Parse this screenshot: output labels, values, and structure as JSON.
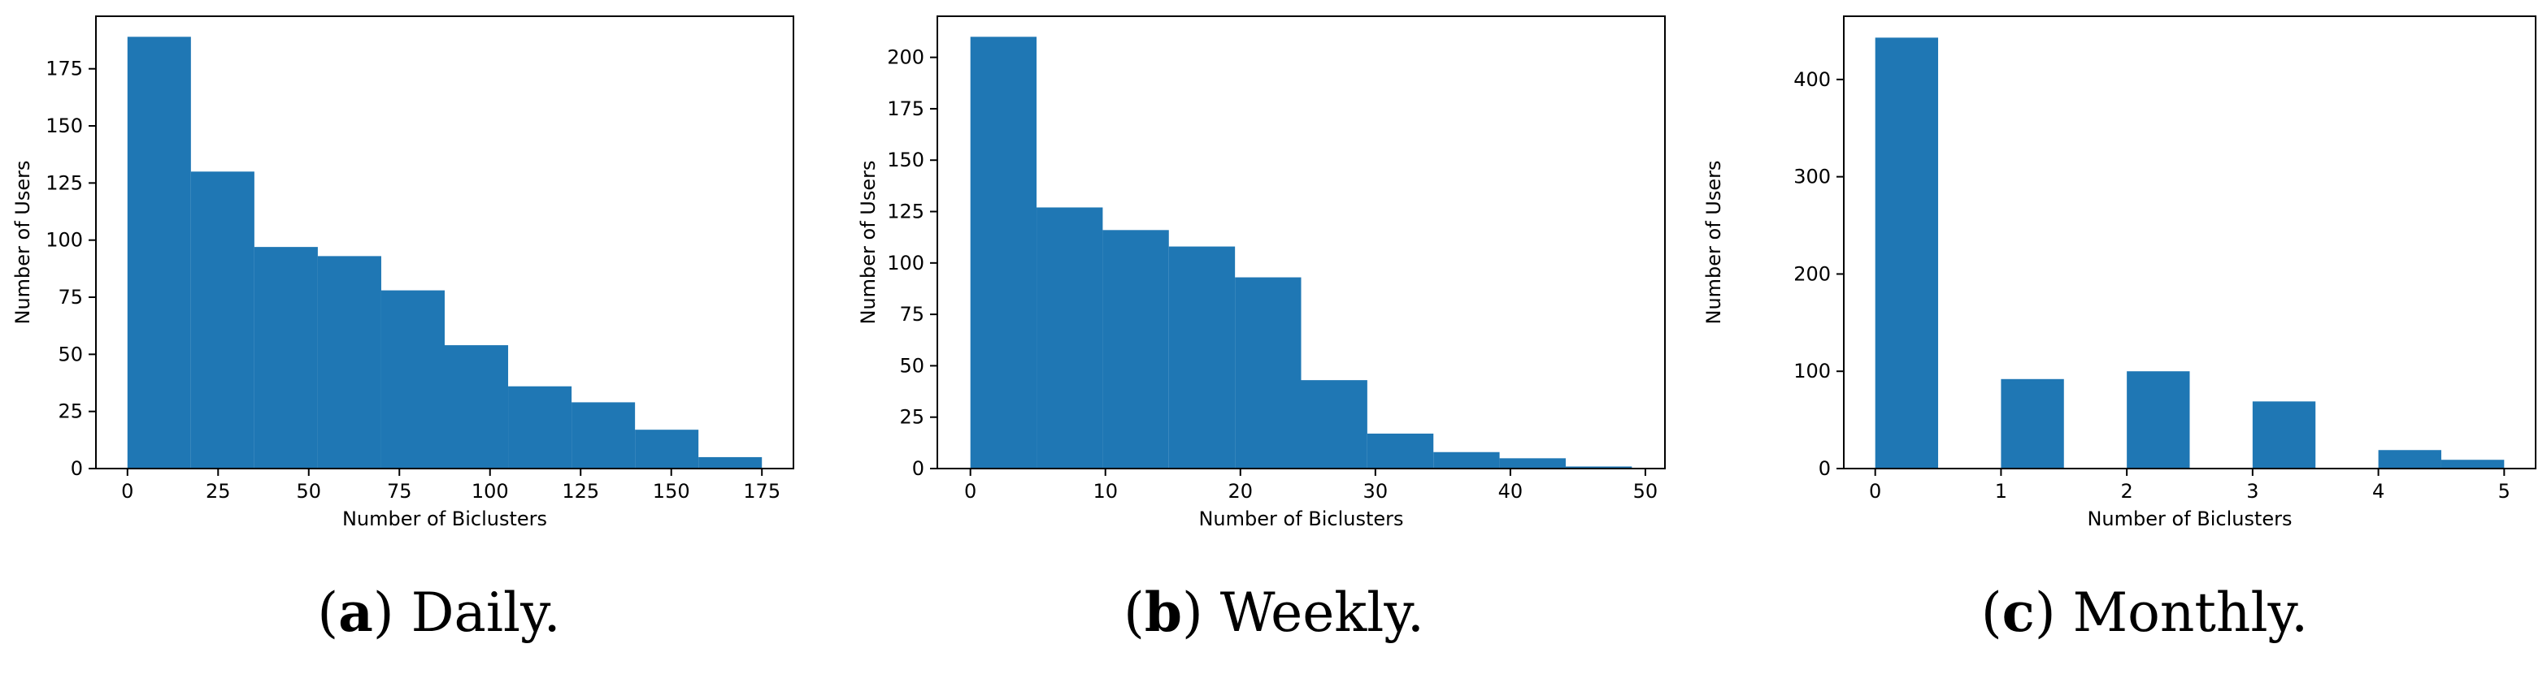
{
  "chart_data": [
    {
      "type": "bar",
      "histogram": true,
      "xlabel": "Number of Biclusters",
      "ylabel": "Number of Users",
      "xlim": [
        -8.7,
        183.7
      ],
      "ylim": [
        0,
        198
      ],
      "xticks": [
        0,
        25,
        50,
        75,
        100,
        125,
        150,
        175
      ],
      "yticks": [
        0,
        25,
        50,
        75,
        100,
        125,
        150,
        175
      ],
      "bins": [
        [
          0,
          17.5
        ],
        [
          17.5,
          35
        ],
        [
          35,
          52.5
        ],
        [
          52.5,
          70
        ],
        [
          70,
          87.5
        ],
        [
          87.5,
          105
        ],
        [
          105,
          122.5
        ],
        [
          122.5,
          140
        ],
        [
          140,
          157.5
        ],
        [
          157.5,
          175
        ]
      ],
      "values": [
        189,
        130,
        97,
        93,
        78,
        54,
        36,
        29,
        17,
        5
      ],
      "color": "#1f77b4",
      "caption": {
        "letter": "a",
        "text": " Daily."
      }
    },
    {
      "type": "bar",
      "histogram": true,
      "xlabel": "Number of Biclusters",
      "ylabel": "Number of Users",
      "xlim": [
        -2.45,
        51.45
      ],
      "ylim": [
        0,
        220
      ],
      "xticks": [
        0,
        10,
        20,
        30,
        40,
        50
      ],
      "yticks": [
        0,
        25,
        50,
        75,
        100,
        125,
        150,
        175,
        200
      ],
      "bins": [
        [
          0,
          4.9
        ],
        [
          4.9,
          9.8
        ],
        [
          9.8,
          14.7
        ],
        [
          14.7,
          19.6
        ],
        [
          19.6,
          24.5
        ],
        [
          24.5,
          29.4
        ],
        [
          29.4,
          34.3
        ],
        [
          34.3,
          39.2
        ],
        [
          39.2,
          44.1
        ],
        [
          44.1,
          49
        ]
      ],
      "values": [
        210,
        127,
        116,
        108,
        93,
        43,
        17,
        8,
        5,
        1
      ],
      "color": "#1f77b4",
      "caption": {
        "letter": "b",
        "text": " Weekly."
      }
    },
    {
      "type": "bar",
      "histogram": true,
      "xlabel": "Number of Biclusters",
      "ylabel": "Number of Users",
      "xlim": [
        -0.25,
        5.25
      ],
      "ylim": [
        0,
        465
      ],
      "xticks": [
        0,
        1,
        2,
        3,
        4,
        5
      ],
      "yticks": [
        0,
        100,
        200,
        300,
        400
      ],
      "bins": [
        [
          0,
          0.5
        ],
        [
          1,
          1.5
        ],
        [
          2,
          2.5
        ],
        [
          3,
          3.5
        ],
        [
          4,
          4.5
        ],
        [
          4.5,
          5
        ]
      ],
      "values": [
        443,
        92,
        100,
        69,
        19,
        9
      ],
      "color": "#1f77b4",
      "caption": {
        "letter": "c",
        "text": " Monthly."
      }
    }
  ]
}
